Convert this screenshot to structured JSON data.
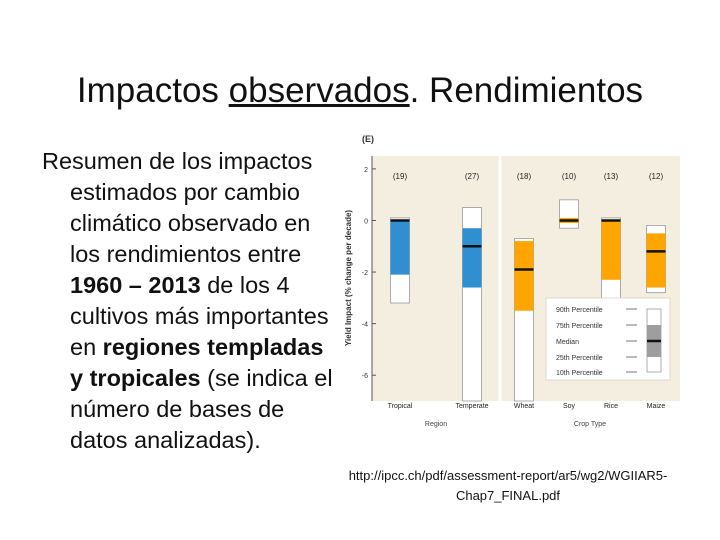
{
  "slide": {
    "title_part1": "Impactos ",
    "title_part2": "observados",
    "title_part3": ". Rendimientos",
    "body": {
      "t1": "Resumen de los impactos estimados por cambio climático observado en los rendimientos entre ",
      "b1": "1960 – 2013",
      "t2": " de los 4 cultivos más importantes en ",
      "b2": "regiones templadas y tropicales",
      "t3": " (se indica el número de bases de datos analizadas)."
    },
    "source_line1": "http://ipcc.ch/pdf/assessment-report/ar5/wg2/WGIIAR5-",
    "source_line2": "Chap7_FINAL.pdf"
  },
  "chart_data": {
    "type": "box",
    "panel_label": "(E)",
    "ylabel": "Yield Impact (% change per decade)",
    "ylim": [
      -7,
      2.5
    ],
    "yticks": [
      2,
      0,
      -2,
      -4,
      -6
    ],
    "groups": [
      {
        "label": "Region",
        "categories": [
          "Tropical",
          "Temperate"
        ]
      },
      {
        "label": "Crop Type",
        "categories": [
          "Wheat",
          "Soy",
          "Rice",
          "Maize"
        ]
      }
    ],
    "series": [
      {
        "category": "Tropical",
        "n": "(19)",
        "color": "#2f8fd0",
        "p90": 0.1,
        "p75": 0.0,
        "median": 0.0,
        "p25": -2.1,
        "p10": -3.2
      },
      {
        "category": "Temperate",
        "n": "(27)",
        "color": "#2f8fd0",
        "p90": 0.5,
        "p75": -0.3,
        "median": -1.0,
        "p25": -2.6,
        "p10": -7.0
      },
      {
        "category": "Wheat",
        "n": "(18)",
        "color": "#ffa500",
        "p90": -0.7,
        "p75": -0.8,
        "median": -1.9,
        "p25": -3.5,
        "p10": -7.0
      },
      {
        "category": "Soy",
        "n": "(10)",
        "color": "#ffa500",
        "p90": 0.8,
        "p75": 0.1,
        "median": 0.0,
        "p25": -0.1,
        "p10": -0.3
      },
      {
        "category": "Rice",
        "n": "(13)",
        "color": "#ffa500",
        "p90": 0.1,
        "p75": 0.0,
        "median": 0.0,
        "p25": -2.3,
        "p10": -3.4
      },
      {
        "category": "Maize",
        "n": "(12)",
        "color": "#ffa500",
        "p90": -0.2,
        "p75": -0.5,
        "median": -1.2,
        "p25": -2.6,
        "p10": -2.8
      }
    ],
    "legend": {
      "position": "bottom-right",
      "items": [
        "90th Percentile",
        "75th Percentile",
        "Median",
        "25th Percentile",
        "10th Percentile"
      ]
    }
  }
}
